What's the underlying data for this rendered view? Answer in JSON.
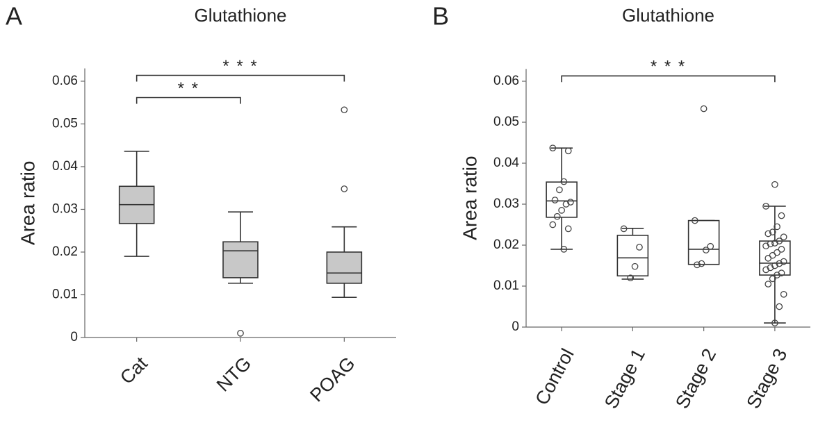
{
  "chart_data": [
    {
      "type": "box",
      "panel": "A",
      "title": "Glutathione",
      "ylabel": "Area ratio",
      "categories": [
        "Cat",
        "NTG",
        "POAG"
      ],
      "ylim": [
        0,
        0.063
      ],
      "yticks": [
        0,
        0.01,
        0.02,
        0.03,
        0.04,
        0.05,
        0.06
      ],
      "box_color": "#c8c8c8",
      "boxes": [
        {
          "min": 0.019,
          "q1": 0.0267,
          "median": 0.0311,
          "q3": 0.0354,
          "max": 0.0436,
          "outliers": []
        },
        {
          "min": 0.0127,
          "q1": 0.014,
          "median": 0.0203,
          "q3": 0.0224,
          "max": 0.0294,
          "outliers": [
            0.001
          ]
        },
        {
          "min": 0.0094,
          "q1": 0.0127,
          "median": 0.0151,
          "q3": 0.02,
          "max": 0.0259,
          "outliers": [
            0.0348,
            0.0533
          ]
        }
      ],
      "annotations": [
        {
          "text": "* * *",
          "from": 0,
          "to": 2
        },
        {
          "text": "* *",
          "from": 0,
          "to": 1
        }
      ]
    },
    {
      "type": "box",
      "panel": "B",
      "title": "Glutathione",
      "ylabel": "Area ratio",
      "categories": [
        "Control",
        "Stage 1",
        "Stage 2",
        "Stage 3"
      ],
      "ylim": [
        0,
        0.063
      ],
      "yticks": [
        0,
        0.01,
        0.02,
        0.03,
        0.04,
        0.05,
        0.06
      ],
      "box_color": "#ffffff",
      "boxes": [
        {
          "min": 0.019,
          "q1": 0.0268,
          "median": 0.0308,
          "q3": 0.0354,
          "max": 0.0437,
          "outliers": [],
          "points": [
            0.0437,
            0.043,
            0.0355,
            0.0335,
            0.031,
            0.0305,
            0.03,
            0.0285,
            0.027,
            0.025,
            0.024,
            0.019
          ]
        },
        {
          "min": 0.0117,
          "q1": 0.0125,
          "median": 0.0169,
          "q3": 0.0224,
          "max": 0.0241,
          "outliers": [],
          "points": [
            0.024,
            0.0195,
            0.0148,
            0.012
          ]
        },
        {
          "min": 0.0153,
          "q1": 0.0153,
          "median": 0.019,
          "q3": 0.026,
          "max": 0.026,
          "outliers": [
            0.0533
          ],
          "points": [
            0.026,
            0.0197,
            0.0188,
            0.0155,
            0.0152
          ]
        },
        {
          "min": 0.001,
          "q1": 0.0127,
          "median": 0.0156,
          "q3": 0.021,
          "max": 0.0295,
          "outliers": [
            0.0348
          ],
          "points": [
            0.0295,
            0.0272,
            0.0245,
            0.0232,
            0.0228,
            0.022,
            0.021,
            0.0205,
            0.0203,
            0.0198,
            0.019,
            0.0182,
            0.0175,
            0.0168,
            0.016,
            0.0155,
            0.015,
            0.0145,
            0.014,
            0.0132,
            0.0127,
            0.0118,
            0.0105,
            0.008,
            0.005,
            0.001
          ]
        }
      ],
      "annotations": [
        {
          "text": "* * *",
          "from": 0,
          "to": 3
        }
      ]
    }
  ]
}
